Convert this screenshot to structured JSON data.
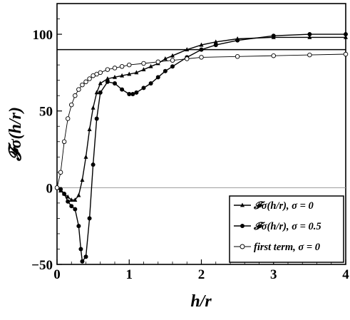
{
  "chart_data": {
    "type": "line",
    "xlabel": "h/r",
    "ylabel": "𝓕σ(h/r)",
    "xlim": [
      0,
      4
    ],
    "ylim": [
      -50,
      120
    ],
    "x_ticks": [
      "0",
      "1",
      "2",
      "3",
      "4"
    ],
    "y_ticks": [
      "−50",
      "0",
      "50",
      "100"
    ],
    "grid": false,
    "legend_position": "bottom-right",
    "reference_lines": [
      {
        "y": 90,
        "color": "#000000"
      },
      {
        "y": 0,
        "color": "#9a9a9a"
      }
    ],
    "series": [
      {
        "name": "𝓕σ(h/r),  σ = 0",
        "marker": "triangle",
        "x": [
          0.0,
          0.05,
          0.1,
          0.15,
          0.2,
          0.25,
          0.3,
          0.35,
          0.4,
          0.45,
          0.5,
          0.55,
          0.6,
          0.7,
          0.8,
          0.9,
          1.0,
          1.1,
          1.2,
          1.3,
          1.4,
          1.5,
          1.6,
          1.8,
          2.0,
          2.2,
          2.5,
          3.0,
          3.5,
          4.0
        ],
        "y": [
          0,
          -2,
          -4,
          -6,
          -8,
          -8,
          -5,
          5,
          20,
          38,
          52,
          62,
          68,
          71,
          72,
          73,
          74,
          75,
          77,
          79,
          81,
          84,
          86,
          90,
          93,
          95,
          97,
          98,
          98,
          98
        ]
      },
      {
        "name": "𝓕σ(h/r), σ = 0.5",
        "marker": "filled-circle",
        "x": [
          0.0,
          0.05,
          0.1,
          0.15,
          0.2,
          0.25,
          0.3,
          0.33,
          0.35,
          0.4,
          0.45,
          0.5,
          0.55,
          0.6,
          0.7,
          0.8,
          0.9,
          1.0,
          1.05,
          1.1,
          1.2,
          1.3,
          1.4,
          1.5,
          1.6,
          1.8,
          2.0,
          2.2,
          2.5,
          3.0,
          3.5,
          4.0
        ],
        "y": [
          0,
          -1,
          -4,
          -9,
          -12,
          -14,
          -25,
          -40,
          -48,
          -45,
          -20,
          15,
          45,
          62,
          69,
          68,
          64,
          61,
          61,
          62,
          65,
          68,
          72,
          76,
          79,
          85,
          90,
          93,
          96,
          99,
          100,
          100
        ]
      },
      {
        "name": "first term, σ = 0",
        "marker": "open-circle",
        "x": [
          0.0,
          0.05,
          0.1,
          0.15,
          0.2,
          0.25,
          0.3,
          0.35,
          0.4,
          0.45,
          0.5,
          0.55,
          0.6,
          0.7,
          0.8,
          0.9,
          1.0,
          1.2,
          1.4,
          1.6,
          1.8,
          2.0,
          2.5,
          3.0,
          3.5,
          4.0
        ],
        "y": [
          0,
          10,
          30,
          45,
          54,
          60,
          64,
          67,
          69,
          71,
          73,
          74,
          75,
          77,
          78,
          79,
          80,
          81,
          82,
          83,
          84,
          85,
          85.5,
          86,
          86.5,
          87
        ]
      }
    ]
  }
}
